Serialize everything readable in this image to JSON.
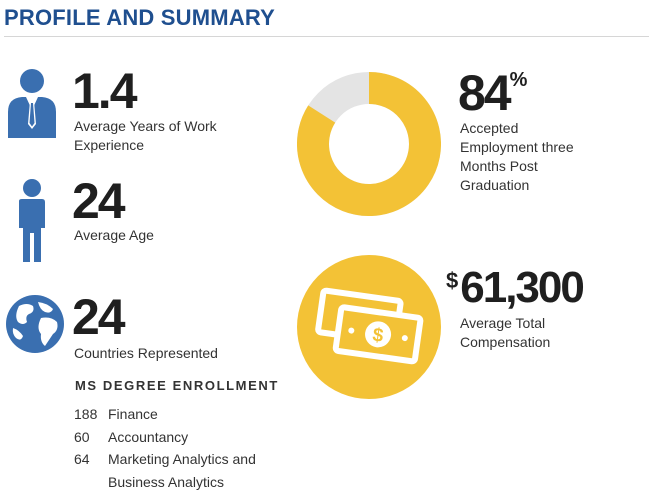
{
  "header": {
    "title": "PROFILE AND SUMMARY"
  },
  "stats_left": [
    {
      "value": "1.4",
      "label": "Average Years of Work Experience",
      "icon": "businessman-icon"
    },
    {
      "value": "24",
      "label": "Average Age",
      "icon": "person-icon"
    },
    {
      "value": "24",
      "label": "Countries Represented",
      "icon": "globe-icon"
    }
  ],
  "stats_right": {
    "employment": {
      "value": "84",
      "unit": "%",
      "label": "Accepted Employment three Months Post Graduation",
      "fraction": 0.84
    },
    "compensation": {
      "currency": "$",
      "value": "61,300",
      "label": "Average Total Compensation",
      "icon": "cash-icon"
    }
  },
  "ms_enrollment": {
    "heading": "MS DEGREE ENROLLMENT",
    "items": [
      {
        "count": "188",
        "program": "Finance"
      },
      {
        "count": "60",
        "program": "Accountancy"
      },
      {
        "count": "64",
        "program": "Marketing Analytics and Business Analytics"
      }
    ]
  },
  "colors": {
    "blue": "#3a6fb0",
    "gold": "#f3c236",
    "track": "#e4e4e4",
    "title": "#1f4f8f"
  }
}
